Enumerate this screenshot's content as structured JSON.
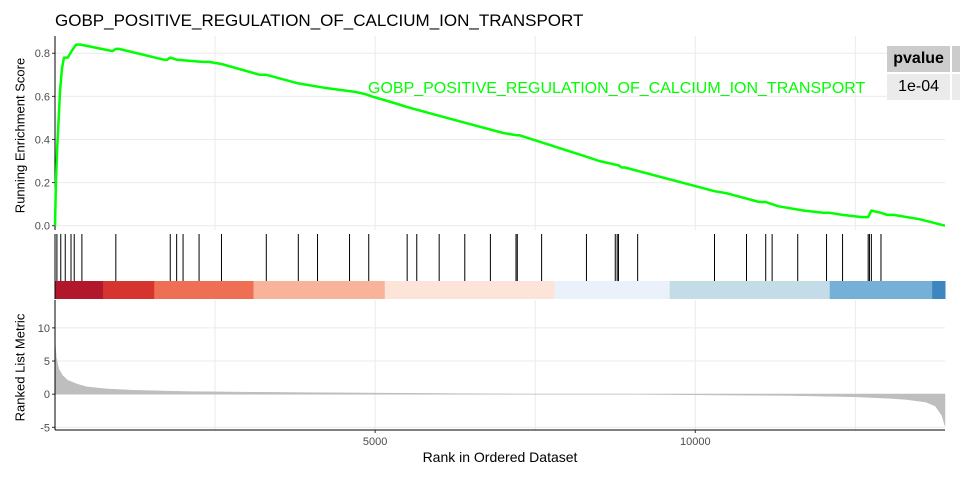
{
  "figure": {
    "title": "GOBP_POSITIVE_REGULATION_OF_CALCIUM_ION_TRANSPORT",
    "gene_set_label": "GOBP_POSITIVE_REGULATION_OF_CALCIUM_ION_TRANSPORT",
    "ylabel_top": "Running Enrichment Score",
    "ylabel_bottom": "Ranked List Metric",
    "xlabel": "Rank in Ordered Dataset",
    "pvalue_header": "pvalue",
    "pvalue": "1e-04"
  },
  "colors": {
    "es_line": "#00ff00",
    "label": "#00ff00",
    "metric_fill": "#bebebe",
    "hit_tick": "#000000",
    "grid": "#ebebeb"
  },
  "chart_data": [
    {
      "type": "line",
      "title": "GOBP_POSITIVE_REGULATION_OF_CALCIUM_ION_TRANSPORT",
      "ylabel": "Running Enrichment Score",
      "xlim": [
        0,
        13900
      ],
      "ylim": [
        -0.02,
        0.88
      ],
      "yticks": [
        0.0,
        0.2,
        0.4,
        0.6,
        0.8
      ],
      "ytick_labels": [
        "0.0",
        "0.2",
        "0.4",
        "0.6",
        "0.8"
      ],
      "grid": true,
      "series": [
        {
          "name": "GOBP_POSITIVE_REGULATION_OF_CALCIUM_ION_TRANSPORT",
          "x": [
            0,
            15,
            35,
            55,
            80,
            110,
            140,
            200,
            260,
            330,
            400,
            900,
            950,
            1000,
            1700,
            1750,
            1800,
            1900,
            2300,
            2400,
            2600,
            3200,
            3300,
            3800,
            4200,
            4700,
            4850,
            4950,
            5400,
            5500,
            6000,
            7000,
            7200,
            7250,
            8300,
            8500,
            8800,
            8850,
            8900,
            10300,
            10500,
            11000,
            11100,
            11300,
            11700,
            12000,
            12100,
            12300,
            12600,
            12700,
            12750,
            12900,
            13000,
            13100,
            13500,
            13900
          ],
          "values": [
            0.0,
            0.21,
            0.36,
            0.48,
            0.63,
            0.73,
            0.78,
            0.78,
            0.81,
            0.84,
            0.84,
            0.81,
            0.82,
            0.82,
            0.77,
            0.77,
            0.78,
            0.77,
            0.76,
            0.76,
            0.75,
            0.7,
            0.7,
            0.66,
            0.64,
            0.62,
            0.61,
            0.6,
            0.56,
            0.55,
            0.51,
            0.43,
            0.42,
            0.42,
            0.32,
            0.3,
            0.28,
            0.27,
            0.27,
            0.16,
            0.15,
            0.11,
            0.11,
            0.09,
            0.07,
            0.06,
            0.06,
            0.05,
            0.04,
            0.04,
            0.07,
            0.06,
            0.05,
            0.05,
            0.03,
            0.0
          ]
        }
      ]
    },
    {
      "type": "rug",
      "name": "gene set hits",
      "positions": [
        30,
        90,
        160,
        250,
        300,
        420,
        950,
        1800,
        1900,
        2000,
        2250,
        2600,
        3300,
        3800,
        4100,
        4600,
        4900,
        5500,
        5650,
        6000,
        6400,
        6800,
        7200,
        7220,
        7600,
        8300,
        8750,
        8780,
        8800,
        9100,
        10300,
        10800,
        11100,
        11200,
        11600,
        12050,
        12300,
        12700,
        12720,
        12750,
        12900
      ],
      "heat_bands": [
        {
          "from": 0,
          "to": 750,
          "color": "#b2182b"
        },
        {
          "from": 750,
          "to": 1550,
          "color": "#d6352f"
        },
        {
          "from": 1550,
          "to": 3100,
          "color": "#ef6f55"
        },
        {
          "from": 3100,
          "to": 5150,
          "color": "#f8b39a"
        },
        {
          "from": 5150,
          "to": 7800,
          "color": "#fde4d9"
        },
        {
          "from": 7800,
          "to": 9600,
          "color": "#eaf1fa"
        },
        {
          "from": 9600,
          "to": 12100,
          "color": "#c4dbe8"
        },
        {
          "from": 12100,
          "to": 13700,
          "color": "#75b0d6"
        },
        {
          "from": 13700,
          "to": 13900,
          "color": "#3e86bf"
        }
      ]
    },
    {
      "type": "area",
      "ylabel": "Ranked List Metric",
      "xlabel": "Rank in Ordered Dataset",
      "xlim": [
        0,
        13900
      ],
      "ylim": [
        -5.4,
        14.2
      ],
      "yticks": [
        -5,
        0,
        5,
        10
      ],
      "ytick_labels": [
        "-5",
        "0",
        "5",
        "10"
      ],
      "xticks": [
        5000,
        10000
      ],
      "xtick_labels": [
        "5000",
        "10000"
      ],
      "grid": true,
      "series": [
        {
          "name": "",
          "x": [
            0,
            20,
            60,
            120,
            200,
            350,
            500,
            800,
            1200,
            2000,
            3000,
            4500,
            6000,
            7500,
            8500,
            9000,
            10000,
            11500,
            12500,
            13000,
            13300,
            13600,
            13750,
            13850,
            13900
          ],
          "values": [
            8.0,
            5.5,
            3.8,
            2.8,
            2.1,
            1.5,
            1.1,
            0.8,
            0.6,
            0.4,
            0.3,
            0.2,
            0.1,
            0.0,
            0.0,
            0.0,
            -0.1,
            -0.2,
            -0.4,
            -0.6,
            -0.8,
            -1.2,
            -1.8,
            -3.2,
            -4.8
          ]
        }
      ]
    }
  ]
}
